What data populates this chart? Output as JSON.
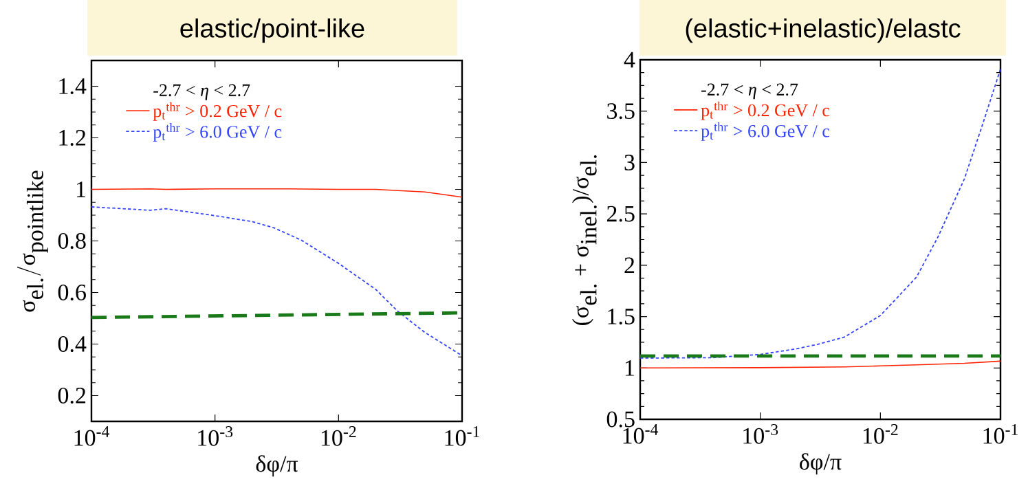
{
  "chart_data": [
    {
      "type": "line",
      "title": "elastic/point-like",
      "xlabel": "δφ/π",
      "ylabel": "\\textrm{σ}_{\\textrm{el.}}/\\textrm{σ}_{\\textrm{pointlike}}",
      "legend_title": "-2.7 < *η* < 2.7",
      "log": "x",
      "legend": "top left",
      "grid": false,
      "xlim": [
        0.0001,
        0.1
      ],
      "ylim": [
        0.1,
        1.5
      ],
      "xticks": [
        {
          "value": 0.0001,
          "label": "10$^{-4}$"
        },
        {
          "value": 0.001,
          "label": "10$^{-3}$"
        },
        {
          "value": 0.01,
          "label": "10$^{-2}$"
        },
        {
          "value": 0.1,
          "label": "10$^{-1}$"
        }
      ],
      "yticks": [
        0.2,
        0.4,
        0.6,
        0.8,
        1,
        1.2,
        1.4
      ],
      "series": [
        {
          "name": "p$_{t}$$^{thr}$ > 0.2 GeV / c",
          "color": "#ff2200",
          "line_style": "solid",
          "x": [
            0.0001,
            0.0003,
            0.0004,
            0.001,
            0.004,
            0.01,
            0.02,
            0.05,
            0.1
          ],
          "values": [
            1.0,
            1.002,
            1.0,
            1.002,
            1.002,
            1.0,
            1.0,
            0.99,
            0.97
          ]
        },
        {
          "name": "p$_{t}$$^{thr}$ > 6.0 GeV / c",
          "color": "#3344ff",
          "line_style": "dotted",
          "x": [
            0.0001,
            0.0003,
            0.0004,
            0.001,
            0.002,
            0.003,
            0.005,
            0.01,
            0.02,
            0.03,
            0.05,
            0.1
          ],
          "values": [
            0.932,
            0.919,
            0.925,
            0.898,
            0.875,
            0.851,
            0.803,
            0.713,
            0.612,
            0.528,
            0.445,
            0.355
          ]
        },
        {
          "color": "#1a7a1a",
          "line_style": "dashed",
          "x": [
            0.0001,
            0.1
          ],
          "values": [
            0.503,
            0.521
          ]
        }
      ]
    },
    {
      "type": "line",
      "title": "(elastic+inelastic)/elastc",
      "xlabel": "δφ/π",
      "ylabel": "\\textrm{(σ}_{\\textrm{el.}}\\textrm{ + σ}_{\\textrm{inel.}}\\textrm{)/σ}_{\\textrm{el.}}",
      "legend_title": "-2.7 < *η* < 2.7",
      "log": "x",
      "legend": "top left",
      "grid": false,
      "xlim": [
        0.0001,
        0.1
      ],
      "ylim": [
        0.5,
        4
      ],
      "xticks": [
        {
          "value": 0.0001,
          "label": "10$^{-4}$"
        },
        {
          "value": 0.001,
          "label": "10$^{-3}$"
        },
        {
          "value": 0.01,
          "label": "10$^{-2}$"
        },
        {
          "value": 0.1,
          "label": "10$^{-1}$"
        }
      ],
      "yticks": [
        0.5,
        1,
        1.5,
        2,
        2.5,
        3,
        3.5,
        4
      ],
      "series": [
        {
          "name": "p$_{t}$$^{thr}$ > 0.2 GeV / c",
          "color": "#ff2200",
          "line_style": "solid",
          "x": [
            0.0001,
            0.001,
            0.005,
            0.01,
            0.02,
            0.05,
            0.1
          ],
          "values": [
            1.0,
            1.003,
            1.01,
            1.02,
            1.03,
            1.045,
            1.066
          ]
        },
        {
          "name": "p$_{t}$$^{thr}$ > 6.0 GeV / c",
          "color": "#3344ff",
          "line_style": "dotted",
          "x": [
            0.0001,
            0.0004,
            0.001,
            0.002,
            0.003,
            0.005,
            0.01,
            0.02,
            0.03,
            0.05,
            0.07,
            0.1
          ],
          "values": [
            1.096,
            1.1,
            1.132,
            1.186,
            1.23,
            1.3,
            1.51,
            1.885,
            2.27,
            2.84,
            3.35,
            3.91
          ]
        },
        {
          "color": "#1a7a1a",
          "line_style": "dashed",
          "x": [
            0.0001,
            0.1
          ],
          "values": [
            1.117,
            1.117
          ]
        }
      ]
    }
  ]
}
